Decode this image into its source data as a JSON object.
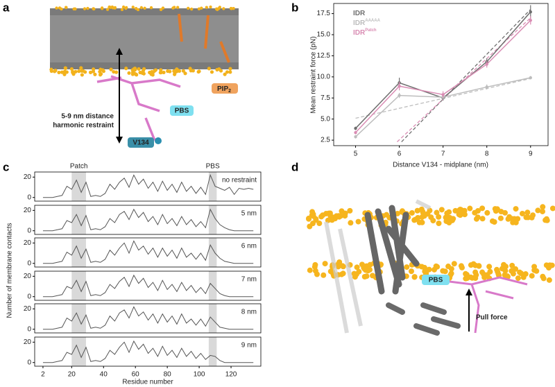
{
  "panel_labels": [
    "a",
    "b",
    "c",
    "d"
  ],
  "panel_a": {
    "restraint_label": [
      "5-9 nm distance",
      "harmonic restraint"
    ],
    "pbs_label": "PBS",
    "residue_label": "V134",
    "lipid_label": "PIP",
    "lipid_subscript": "2"
  },
  "panel_d": {
    "pbs_label": "PBS",
    "force_label": "Pull force"
  },
  "chart_data": [
    {
      "type": "line",
      "x_label": "Distance V134 - midplane (nm)",
      "y_label": "Mean restraint force (pN)",
      "x": [
        5,
        6,
        7,
        8,
        9
      ],
      "xlim": [
        4.5,
        9.4
      ],
      "ylim": [
        1.85,
        18.7
      ],
      "xticks": [
        5,
        6,
        7,
        8,
        9
      ],
      "yticks": [
        2.5,
        {
          "value": 5,
          "label": "5.0"
        },
        7.5,
        {
          "value": 10,
          "label": "10.0"
        },
        12.5,
        {
          "value": 15,
          "label": "15.0"
        },
        17.5
      ],
      "legend": "upper left",
      "series": [
        {
          "name": "IDR",
          "color": "#6f6f6f",
          "values": [
            3.9,
            9.3,
            7.5,
            11.8,
            17.7
          ],
          "errors": [
            0.2,
            0.6,
            0.3,
            0.4,
            0.8
          ]
        },
        {
          "name": "IDR",
          "name_superscript": "AAAAA",
          "color": "#bdbdbd",
          "values": [
            2.9,
            7.8,
            7.6,
            8.8,
            9.9
          ],
          "errors": [
            0.2,
            0.3,
            0.3,
            0.3,
            0.2
          ]
        },
        {
          "name": "IDR",
          "name_superscript": "Patch",
          "color": "#d98cb3",
          "values": [
            3.4,
            8.9,
            7.9,
            11.5,
            16.7
          ],
          "errors": [
            0.2,
            0.5,
            0.4,
            0.4,
            0.5
          ]
        }
      ],
      "fit_lines": [
        {
          "color": "#6f6f6f",
          "x": [
            6.05,
            9
          ],
          "values": [
            2.3,
            18.0
          ]
        },
        {
          "color": "#bdbdbd",
          "x": [
            5,
            9
          ],
          "values": [
            5.1,
            9.8
          ]
        },
        {
          "color": "#d98cb3",
          "x": [
            5.95,
            9
          ],
          "values": [
            2.3,
            17.0
          ]
        }
      ]
    },
    {
      "type": "line",
      "annotation": "no restraint",
      "y_label": "Number of membrane contacts",
      "band_labels": [
        "Patch",
        "PBS"
      ],
      "x": [
        2,
        5,
        8,
        11,
        14,
        17,
        20,
        23,
        26,
        29,
        32,
        35,
        38,
        41,
        44,
        47,
        50,
        53,
        56,
        59,
        62,
        65,
        68,
        71,
        74,
        77,
        80,
        83,
        86,
        89,
        92,
        95,
        98,
        101,
        104,
        107,
        110,
        113,
        116,
        119,
        122,
        125,
        128,
        131,
        134
      ],
      "values": [
        0,
        0,
        0,
        1,
        2,
        11,
        8,
        17,
        5,
        15,
        1,
        2,
        1,
        4,
        13,
        8,
        15,
        19,
        10,
        22,
        13,
        18,
        9,
        15,
        6,
        16,
        7,
        13,
        5,
        15,
        6,
        11,
        4,
        10,
        3,
        22,
        11,
        9,
        7,
        10,
        3,
        9,
        8,
        9,
        8
      ],
      "color": "#555555",
      "xlim": [
        -3.2,
        138.7
      ],
      "ylim": [
        -3.6,
        25
      ],
      "yticks": [
        0,
        20
      ],
      "bands": [
        [
          20,
          29
        ],
        [
          106,
          111
        ]
      ],
      "band_color": "#d9d9d9"
    },
    {
      "type": "line",
      "annotation": "5 nm",
      "x": [
        2,
        5,
        8,
        11,
        14,
        17,
        20,
        23,
        26,
        29,
        32,
        35,
        38,
        41,
        44,
        47,
        50,
        53,
        56,
        59,
        62,
        65,
        68,
        71,
        74,
        77,
        80,
        83,
        86,
        89,
        92,
        95,
        98,
        101,
        104,
        107,
        110,
        113,
        116,
        119,
        122,
        125,
        128,
        131,
        134
      ],
      "values": [
        0,
        0,
        0,
        1,
        2,
        10,
        8,
        16,
        5,
        15,
        1,
        2,
        1,
        4,
        12,
        8,
        16,
        19,
        11,
        21,
        13,
        18,
        9,
        14,
        6,
        16,
        7,
        12,
        5,
        14,
        6,
        11,
        4,
        9,
        3,
        21,
        12,
        6,
        3,
        1,
        0,
        0,
        0,
        0,
        0
      ],
      "color": "#555555",
      "xlim": [
        -3.2,
        138.7
      ],
      "ylim": [
        -3.6,
        25
      ],
      "yticks": [
        0,
        20
      ],
      "bands": [
        [
          20,
          29
        ],
        [
          106,
          111
        ]
      ],
      "band_color": "#d9d9d9"
    },
    {
      "type": "line",
      "annotation": "6 nm",
      "x": [
        2,
        5,
        8,
        11,
        14,
        17,
        20,
        23,
        26,
        29,
        32,
        35,
        38,
        41,
        44,
        47,
        50,
        53,
        56,
        59,
        62,
        65,
        68,
        71,
        74,
        77,
        80,
        83,
        86,
        89,
        92,
        95,
        98,
        101,
        104,
        107,
        110,
        113,
        116,
        119,
        122,
        125,
        128,
        131,
        134
      ],
      "values": [
        0,
        0,
        0,
        1,
        2,
        11,
        8,
        17,
        5,
        14,
        1,
        2,
        1,
        4,
        13,
        8,
        15,
        20,
        10,
        22,
        13,
        17,
        9,
        15,
        6,
        15,
        7,
        13,
        5,
        15,
        6,
        10,
        4,
        10,
        3,
        18,
        10,
        5,
        2,
        1,
        0,
        0,
        0,
        0,
        0
      ],
      "color": "#555555",
      "xlim": [
        -3.2,
        138.7
      ],
      "ylim": [
        -3.6,
        25
      ],
      "yticks": [
        0,
        20
      ],
      "bands": [
        [
          20,
          29
        ],
        [
          106,
          111
        ]
      ],
      "band_color": "#d9d9d9"
    },
    {
      "type": "line",
      "annotation": "7 nm",
      "x": [
        2,
        5,
        8,
        11,
        14,
        17,
        20,
        23,
        26,
        29,
        32,
        35,
        38,
        41,
        44,
        47,
        50,
        53,
        56,
        59,
        62,
        65,
        68,
        71,
        74,
        77,
        80,
        83,
        86,
        89,
        92,
        95,
        98,
        101,
        104,
        107,
        110,
        113,
        116,
        119,
        122,
        125,
        128,
        131,
        134
      ],
      "values": [
        0,
        0,
        0,
        1,
        2,
        10,
        8,
        16,
        5,
        15,
        1,
        2,
        1,
        4,
        12,
        8,
        15,
        19,
        10,
        21,
        13,
        18,
        9,
        14,
        6,
        16,
        7,
        12,
        5,
        14,
        6,
        11,
        4,
        9,
        3,
        13,
        8,
        3,
        1,
        0,
        0,
        0,
        0,
        0,
        0
      ],
      "color": "#555555",
      "xlim": [
        -3.2,
        138.7
      ],
      "ylim": [
        -3.6,
        25
      ],
      "yticks": [
        0,
        20
      ],
      "bands": [
        [
          20,
          29
        ],
        [
          106,
          111
        ]
      ],
      "band_color": "#d9d9d9"
    },
    {
      "type": "line",
      "annotation": "8 nm",
      "x": [
        2,
        5,
        8,
        11,
        14,
        17,
        20,
        23,
        26,
        29,
        32,
        35,
        38,
        41,
        44,
        47,
        50,
        53,
        56,
        59,
        62,
        65,
        68,
        71,
        74,
        77,
        80,
        83,
        86,
        89,
        92,
        95,
        98,
        101,
        104,
        107,
        110,
        113,
        116,
        119,
        122,
        125,
        128,
        131,
        134
      ],
      "values": [
        0,
        0,
        0,
        1,
        2,
        11,
        8,
        16,
        5,
        14,
        1,
        2,
        1,
        4,
        13,
        8,
        16,
        19,
        11,
        22,
        13,
        17,
        9,
        15,
        6,
        15,
        7,
        13,
        5,
        15,
        6,
        10,
        4,
        10,
        3,
        12,
        7,
        2,
        1,
        0,
        0,
        0,
        0,
        0,
        0
      ],
      "color": "#555555",
      "xlim": [
        -3.2,
        138.7
      ],
      "ylim": [
        -3.6,
        25
      ],
      "yticks": [
        0,
        20
      ],
      "bands": [
        [
          20,
          29
        ],
        [
          106,
          111
        ]
      ],
      "band_color": "#d9d9d9"
    },
    {
      "type": "line",
      "annotation": "9 nm",
      "x_label": "Residue number",
      "xticks": [
        2,
        20,
        40,
        60,
        80,
        100,
        120
      ],
      "x": [
        2,
        5,
        8,
        11,
        14,
        17,
        20,
        23,
        26,
        29,
        32,
        35,
        38,
        41,
        44,
        47,
        50,
        53,
        56,
        59,
        62,
        65,
        68,
        71,
        74,
        77,
        80,
        83,
        86,
        89,
        92,
        95,
        98,
        101,
        104,
        107,
        110,
        113,
        116,
        119,
        122,
        125,
        128,
        131,
        134
      ],
      "values": [
        0,
        0,
        0,
        1,
        2,
        10,
        8,
        17,
        5,
        15,
        1,
        2,
        1,
        4,
        12,
        8,
        15,
        20,
        10,
        21,
        13,
        18,
        9,
        14,
        6,
        16,
        7,
        12,
        5,
        14,
        6,
        11,
        4,
        9,
        3,
        7,
        6,
        2,
        0,
        0,
        0,
        0,
        0,
        0,
        0
      ],
      "color": "#555555",
      "xlim": [
        -3.2,
        138.7
      ],
      "ylim": [
        -3.6,
        25
      ],
      "yticks": [
        0,
        20
      ],
      "bands": [
        [
          20,
          29
        ],
        [
          106,
          111
        ]
      ],
      "band_color": "#d9d9d9"
    }
  ]
}
